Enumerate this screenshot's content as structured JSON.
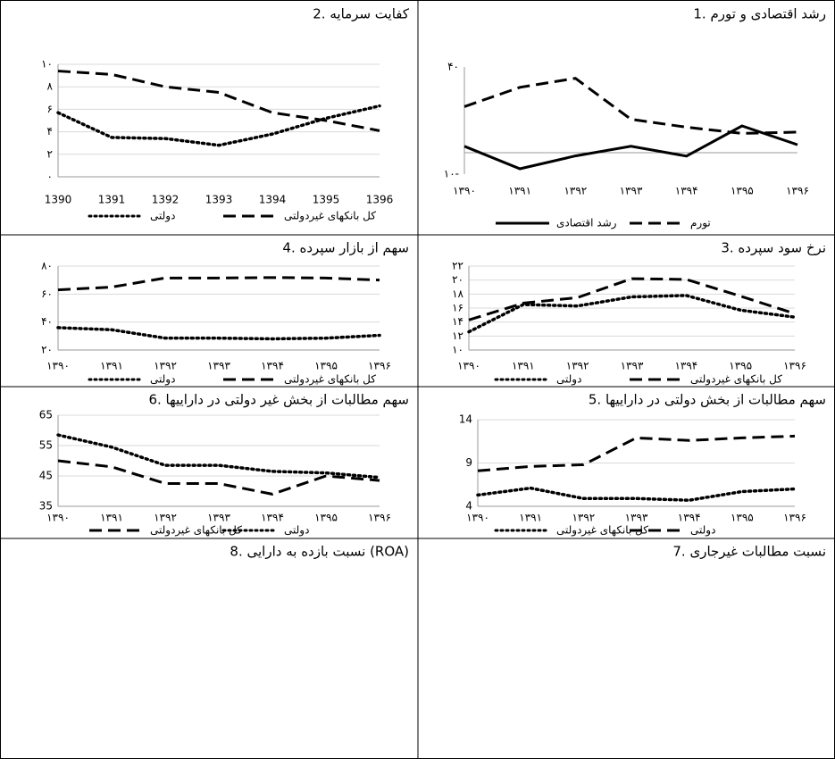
{
  "chart_data": [
    {
      "type": "line",
      "title": "1. رشد اقتصادی و تورم",
      "categories": [
        "۱۳۹۰",
        "۱۳۹۱",
        "۱۳۹۲",
        "۱۳۹۳",
        "۱۳۹۴",
        "۱۳۹۵",
        "۱۳۹۶"
      ],
      "ylim": [
        -10,
        40
      ],
      "yticks": [
        {
          "value": -10,
          "label": "۱۰-"
        },
        {
          "value": 40,
          "label": "۴۰"
        }
      ],
      "grid": false,
      "series": [
        {
          "name": "تورم",
          "color": "#000000",
          "style": "dashed",
          "values": [
            21.5,
            30.5,
            34.7,
            15.6,
            11.9,
            9,
            9.6
          ]
        },
        {
          "name": "رشد اقتصادی",
          "color": "#000000",
          "style": "solid",
          "values": [
            3,
            -7.5,
            -1.5,
            3,
            -1.6,
            12.5,
            3.7
          ]
        }
      ]
    },
    {
      "type": "line",
      "title": "2. کفایت سرمایه",
      "categories": [
        "1390",
        "1391",
        "1392",
        "1393",
        "1394",
        "1395",
        "1396"
      ],
      "ylim": [
        0,
        10
      ],
      "yticks": [
        {
          "value": 0,
          "label": "۰"
        },
        {
          "value": 2,
          "label": "۲"
        },
        {
          "value": 4,
          "label": "۴"
        },
        {
          "value": 6,
          "label": "۶"
        },
        {
          "value": 8,
          "label": "۸"
        },
        {
          "value": 10,
          "label": "۱۰"
        }
      ],
      "grid": true,
      "series": [
        {
          "name": "کل بانکهای غیردولتی",
          "color": "#000000",
          "style": "dashed",
          "values": [
            9.4,
            9.1,
            8,
            7.5,
            5.7,
            5,
            4.1
          ]
        },
        {
          "name": "دولتی",
          "color": "#000000",
          "style": "dotted",
          "values": [
            5.7,
            3.5,
            3.4,
            2.8,
            3.8,
            5.2,
            6.3
          ]
        }
      ]
    },
    {
      "type": "line",
      "title": "3. نرخ سود سپرده",
      "categories": [
        "۱۳۹۰",
        "۱۳۹۱",
        "۱۳۹۲",
        "۱۳۹۳",
        "۱۳۹۴",
        "۱۳۹۵",
        "۱۳۹۶"
      ],
      "ylim": [
        10,
        22
      ],
      "yticks": [
        {
          "value": 10,
          "label": "۱۰"
        },
        {
          "value": 12,
          "label": "۱۲"
        },
        {
          "value": 14,
          "label": "۱۴"
        },
        {
          "value": 16,
          "label": "۱۶"
        },
        {
          "value": 18,
          "label": "۱۸"
        },
        {
          "value": 20,
          "label": "۲۰"
        },
        {
          "value": 22,
          "label": "۲۲"
        }
      ],
      "grid": true,
      "series": [
        {
          "name": "کل بانکهای غیردولتی",
          "color": "#000000",
          "style": "dashed",
          "values": [
            14.3,
            16.7,
            17.5,
            20.2,
            20.1,
            17.7,
            15.2
          ]
        },
        {
          "name": "دولتی",
          "color": "#000000",
          "style": "dotted",
          "values": [
            12.6,
            16.5,
            16.3,
            17.6,
            17.8,
            15.7,
            14.7
          ]
        }
      ]
    },
    {
      "type": "line",
      "title": "4. سهم از بازار سپرده",
      "categories": [
        "۱۳۹۰",
        "۱۳۹۱",
        "۱۳۹۲",
        "۱۳۹۳",
        "۱۳۹۴",
        "۱۳۹۵",
        "۱۳۹۶"
      ],
      "ylim": [
        20,
        80
      ],
      "yticks": [
        {
          "value": 20,
          "label": "۲۰"
        },
        {
          "value": 40,
          "label": "۴۰"
        },
        {
          "value": 60,
          "label": "۶۰"
        },
        {
          "value": 80,
          "label": "۸۰"
        }
      ],
      "grid": true,
      "series": [
        {
          "name": "کل بانکهای غیردولتی",
          "color": "#000000",
          "style": "dashed",
          "values": [
            63,
            65,
            71.5,
            71.5,
            71.8,
            71.5,
            70
          ]
        },
        {
          "name": "دولتی",
          "color": "#000000",
          "style": "dotted",
          "values": [
            36,
            34.5,
            28.5,
            28.5,
            28,
            28.5,
            30.5
          ]
        }
      ]
    },
    {
      "type": "line",
      "title": "5. سهم مطالبات از بخش دولتی در داراییها",
      "categories": [
        "۱۳۹۰",
        "۱۳۹۱",
        "۱۳۹۲",
        "۱۳۹۳",
        "۱۳۹۴",
        "۱۳۹۵",
        "۱۳۹۶"
      ],
      "ylim": [
        4,
        14
      ],
      "yticks": [
        4,
        9,
        14
      ],
      "grid": true,
      "series": [
        {
          "name": "دولتی",
          "color": "#000000",
          "style": "dashed",
          "values": [
            8.1,
            8.6,
            8.8,
            11.9,
            11.6,
            11.9,
            12.1
          ]
        },
        {
          "name": "کل بانکهای غیردولتی",
          "color": "#000000",
          "style": "dotted",
          "values": [
            5.3,
            6.1,
            4.9,
            4.9,
            4.7,
            5.7,
            6
          ]
        }
      ]
    },
    {
      "type": "line",
      "title": "6. سهم مطالبات از بخش غیر دولتی در داراییها",
      "categories": [
        "۱۳۹۰",
        "۱۳۹۱",
        "۱۳۹۲",
        "۱۳۹۳",
        "۱۳۹۴",
        "۱۳۹۵",
        "۱۳۹۶"
      ],
      "ylim": [
        35,
        65
      ],
      "yticks": [
        35,
        45,
        55,
        65
      ],
      "grid": true,
      "series": [
        {
          "name": "دولتی",
          "color": "#000000",
          "style": "dotted",
          "values": [
            58.5,
            54.5,
            48.5,
            48.5,
            46.5,
            46,
            44.5
          ]
        },
        {
          "name": "کل بانکهای غیردولتی",
          "color": "#000000",
          "style": "dashed",
          "values": [
            50,
            48,
            42.5,
            42.5,
            39,
            45,
            43.5
          ]
        }
      ]
    }
  ],
  "cut_off_titles": [
    "7. نسبت مطالبات غیرجاری",
    "8. نسبت بازده به دارایی (ROA)"
  ]
}
